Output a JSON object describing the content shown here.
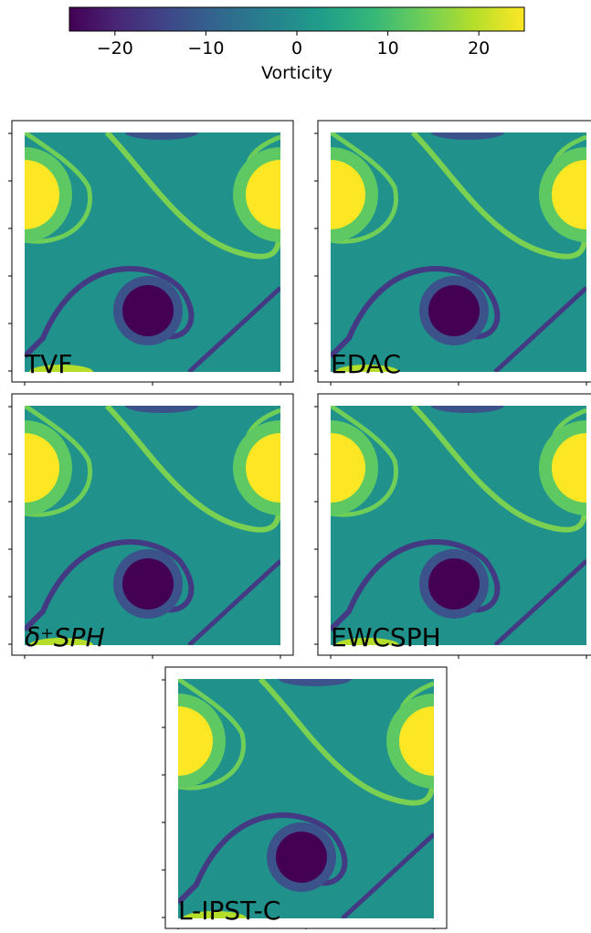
{
  "chart_data": {
    "type": "colorbar",
    "label": "Vorticity",
    "xlim": [
      -25,
      25
    ],
    "xticks": [
      {
        "value": -20,
        "label": "−20"
      },
      {
        "value": -10,
        "label": "−10"
      },
      0,
      10,
      20
    ],
    "colormap": [
      "#440154",
      "#482878",
      "#3e4989",
      "#31688e",
      "#26828e",
      "#1f9e89",
      "#35b779",
      "#6ece58",
      "#b5de2b",
      "#fde725"
    ],
    "panels": [
      "TVF",
      "EDAC",
      "δ⁺SPH",
      "EWCSPH",
      "L-IPST-C"
    ]
  }
}
